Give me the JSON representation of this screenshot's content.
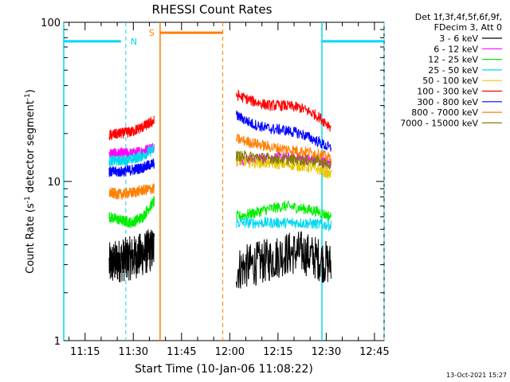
{
  "chart_data": {
    "type": "line",
    "title": "RHESSI Count Rates",
    "xlabel": "Start Time (10-Jan-06 11:08:22)",
    "ylabel": "Count Rate (s",
    "ylabel_sup1": "-1",
    "ylabel_mid": " detector segment",
    "ylabel_sup2": "-1",
    "ylabel_end": ")",
    "y_scale": "log",
    "ylim": [
      1,
      100
    ],
    "xlim": [
      "11:08:22",
      "12:48:00"
    ],
    "y_ticks": [
      "1",
      "10",
      "100"
    ],
    "x_ticks": [
      "11:15",
      "11:30",
      "11:45",
      "12:00",
      "12:15",
      "12:30",
      "12:45"
    ],
    "legend": {
      "position": "top-right",
      "header1": "Det 1f,3f,4f,5f,6f,9f,",
      "header2": "FDecim 3, Att 0"
    },
    "data_gap": [
      "11:38",
      "12:02"
    ],
    "annotations": {
      "N_label": "N",
      "S_label": "S",
      "night_intervals": [
        {
          "start": "11:08:22",
          "end": "11:27:40"
        },
        {
          "start": "12:28:40",
          "end": "12:48:00"
        }
      ],
      "saa_interval": {
        "start": "11:38:20",
        "end": "11:57:50"
      },
      "colors": {
        "night": "#00d8f0",
        "saa": "#ff7f00"
      }
    },
    "series": [
      {
        "name": "3 - 6 keV",
        "color": "#000000",
        "values_segment1": [
          3.0,
          3.2,
          3.3,
          3.5,
          3.8
        ],
        "values_segment2": [
          2.8,
          3.0,
          3.2,
          3.5,
          3.6,
          3.3,
          3.0
        ]
      },
      {
        "name": "6 - 12 keV",
        "color": "#ff00ff",
        "values_segment1": [
          15,
          15,
          15,
          15.5,
          16.5
        ],
        "values_segment2": [
          13.5,
          13.8,
          14.0,
          14.2,
          14.0,
          13.5,
          13.0
        ]
      },
      {
        "name": "12 - 25 keV",
        "color": "#00ee00",
        "values_segment1": [
          6.0,
          5.7,
          5.5,
          6.0,
          7.5
        ],
        "values_segment2": [
          6.0,
          6.3,
          6.7,
          7.0,
          6.8,
          6.5,
          6.0
        ]
      },
      {
        "name": "25 - 50 keV",
        "color": "#00d8f0",
        "values_segment1": [
          13.5,
          13.5,
          13.8,
          14.5,
          16.0
        ],
        "values_segment2": [
          5.5,
          5.5,
          5.5,
          5.5,
          5.5,
          5.4,
          5.3
        ]
      },
      {
        "name": "50 - 100 keV",
        "color": "#e8c800",
        "values_segment1": [
          null,
          null,
          null,
          null,
          null
        ],
        "values_segment2": [
          13.5,
          13.2,
          13.0,
          12.8,
          12.5,
          12.0,
          11.0
        ]
      },
      {
        "name": "100 - 300 keV",
        "color": "#ff0000",
        "values_segment1": [
          19.5,
          20,
          20.5,
          22,
          24
        ],
        "values_segment2": [
          35,
          32,
          30,
          30,
          29,
          26,
          22
        ]
      },
      {
        "name": "300 - 800 keV",
        "color": "#0000ff",
        "values_segment1": [
          11.5,
          11.5,
          11.8,
          12.2,
          13.0
        ],
        "values_segment2": [
          26,
          23,
          21.5,
          21,
          20,
          18,
          16
        ]
      },
      {
        "name": "800 - 7000 keV",
        "color": "#ff7f00",
        "values_segment1": [
          8.5,
          8.3,
          8.5,
          8.8,
          9.0
        ],
        "values_segment2": [
          18.5,
          17.5,
          16.5,
          16,
          15.5,
          15,
          14
        ]
      },
      {
        "name": "7000 - 15000 keV",
        "color": "#808000",
        "values_segment1": [
          null,
          null,
          null,
          null,
          null
        ],
        "values_segment2": [
          14.5,
          14.3,
          14.0,
          13.8,
          13.6,
          13.5,
          12.5
        ]
      }
    ],
    "x_segment1": [
      "11:22:30",
      "11:26:00",
      "11:29:30",
      "11:33:00",
      "11:36:30"
    ],
    "x_segment2": [
      "12:02:00",
      "12:07:00",
      "12:12:00",
      "12:17:00",
      "12:22:00",
      "12:27:00",
      "12:31:30"
    ]
  },
  "footer": {
    "timestamp": "13-Oct-2021 15:27"
  }
}
